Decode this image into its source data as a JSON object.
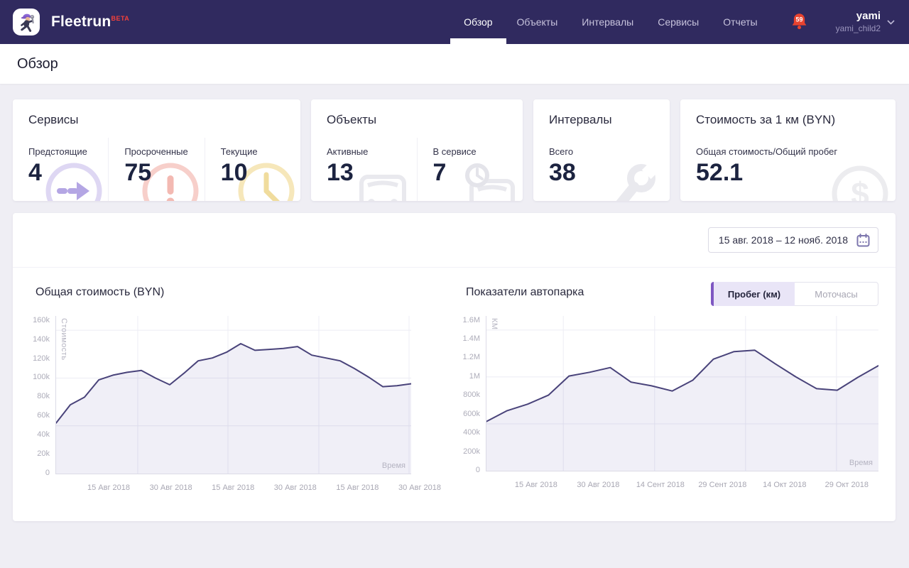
{
  "header": {
    "brand": "Fleetrun",
    "brand_badge": "BETA",
    "nav": [
      {
        "label": "Обзор",
        "active": true
      },
      {
        "label": "Объекты",
        "active": false
      },
      {
        "label": "Интервалы",
        "active": false
      },
      {
        "label": "Сервисы",
        "active": false
      },
      {
        "label": "Отчеты",
        "active": false
      }
    ],
    "notifications": "59",
    "user": {
      "name": "yami",
      "account": "yami_child2"
    }
  },
  "page_title": "Обзор",
  "cards": [
    {
      "title": "Сервисы",
      "stats": [
        {
          "label": "Предстоящие",
          "value": "4",
          "icon": "upcoming-arrow-circle"
        },
        {
          "label": "Просроченные",
          "value": "75",
          "icon": "overdue-exclamation-circle"
        },
        {
          "label": "Текущие",
          "value": "10",
          "icon": "current-clock"
        }
      ]
    },
    {
      "title": "Объекты",
      "stats": [
        {
          "label": "Активные",
          "value": "13",
          "icon": "vehicle"
        },
        {
          "label": "В сервисе",
          "value": "7",
          "icon": "vehicle-clock"
        }
      ]
    },
    {
      "title": "Интервалы",
      "stats": [
        {
          "label": "Всего",
          "value": "38",
          "icon": "wrench"
        }
      ]
    },
    {
      "title": "Стоимость за 1 км (BYN)",
      "stats": [
        {
          "label": "Общая стоимость/Общий пробег",
          "value": "52.1",
          "icon": "dollar-circle"
        }
      ]
    }
  ],
  "period": {
    "range": "15 авг. 2018 – 12 нояб. 2018"
  },
  "toggle": {
    "options": [
      {
        "label": "Пробег (км)",
        "active": true
      },
      {
        "label": "Моточасы",
        "active": false
      }
    ]
  },
  "colors": {
    "header_bg": "#302a5f",
    "accent_purple": "#7e57c2",
    "beta_red": "#f4403a",
    "bell_red": "#e8432f",
    "line": "#49437a",
    "area_fill": "rgba(90,80,165,0.09)",
    "grid": "#ececf4",
    "page_bg": "#efeef4"
  },
  "chart_data": [
    {
      "type": "area",
      "title": "Общая стоимость (BYN)",
      "xlabel": "Время",
      "ylabel": "Стоимость",
      "legend": [],
      "grid": true,
      "ylim": [
        0,
        165000
      ],
      "y_tick_labels": [
        "160k",
        "140k",
        "120k",
        "100k",
        "80k",
        "60k",
        "40k",
        "20k",
        "0"
      ],
      "y_tick_values": [
        160000,
        140000,
        120000,
        100000,
        80000,
        60000,
        40000,
        20000,
        0
      ],
      "grid_y_values": [
        150000,
        100000,
        50000
      ],
      "x_tick_labels": [
        "15 Авг 2018",
        "30 Авг 2018",
        "15 Авг 2018",
        "30 Авг 2018",
        "15 Авг 2018",
        "30 Авг 2018"
      ],
      "values": [
        53000,
        72000,
        80000,
        98000,
        103000,
        106000,
        108000,
        100000,
        93000,
        105000,
        118000,
        121000,
        127000,
        136000,
        129000,
        130000,
        131000,
        133000,
        124000,
        121000,
        118000,
        110000,
        101000,
        91000,
        92000,
        94000
      ]
    },
    {
      "type": "area",
      "title": "Показатели автопарка",
      "xlabel": "Время",
      "ylabel": "КМ",
      "legend": [],
      "grid": true,
      "ylim": [
        0,
        1650000
      ],
      "y_tick_labels": [
        "1.6M",
        "1.4M",
        "1.2M",
        "1M",
        "800k",
        "600k",
        "400k",
        "200k",
        "0"
      ],
      "y_tick_values": [
        1600000,
        1400000,
        1200000,
        1000000,
        800000,
        600000,
        400000,
        200000,
        0
      ],
      "grid_y_values": [
        1500000,
        1000000,
        500000
      ],
      "x_tick_labels": [
        "15 Авг 2018",
        "30 Авг 2018",
        "14 Сент 2018",
        "29 Сент 2018",
        "14 Окт 2018",
        "29 Окт 2018"
      ],
      "values": [
        525000,
        640000,
        710000,
        805000,
        1010000,
        1050000,
        1100000,
        945000,
        905000,
        850000,
        965000,
        1190000,
        1270000,
        1285000,
        1140000,
        1000000,
        875000,
        858000,
        995000,
        1120000
      ]
    }
  ]
}
